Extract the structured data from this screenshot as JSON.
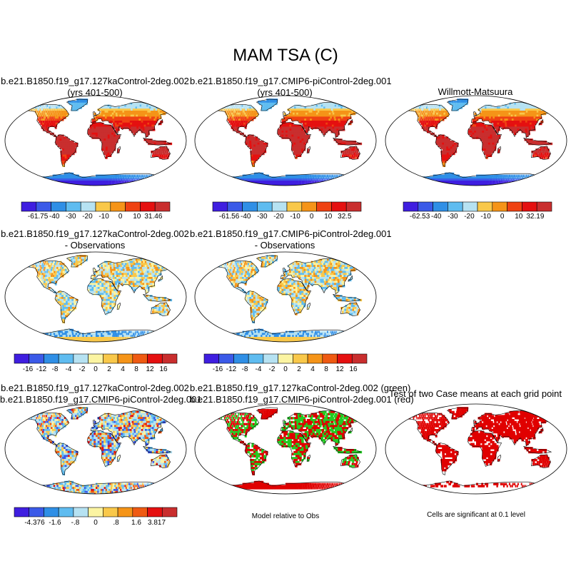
{
  "figure": {
    "title": "MAM TSA (C)",
    "panels": [
      {
        "line1": "b.e21.B1850.f19_g17.127kaControl-2deg.002",
        "line2": "(yrs 401-500)"
      },
      {
        "line1": "b.e21.B1850.f19_g17.CMIP6-piControl-2deg.001",
        "line2": "(yrs 401-500)"
      },
      {
        "line1": "Willmott-Matsuura",
        "line2": ""
      },
      {
        "line1": "b.e21.B1850.f19_g17.127kaControl-2deg.002",
        "line2": "- Observations"
      },
      {
        "line1": "b.e21.B1850.f19_g17.CMIP6-piControl-2deg.001",
        "line2": "- Observations"
      },
      {
        "line1": "b.e21.B1850.f19_g17.127kaControl-2deg.002",
        "line2": "b.e21.B1850.f19_g17.CMIP6-piControl-2deg.001"
      },
      {
        "line1": "b.e21.B1850.f19_g17.127kaControl-2deg.002 (green)",
        "line2": "b.e21.B1850.f19_g17.CMIP6-piControl-2deg.001 (red)"
      },
      {
        "line1": "Test of two Case means at each grid point",
        "line2": ""
      }
    ],
    "notes": {
      "model_relative": "Model relative to Obs",
      "significance": "Cells are significant at 0.1 level"
    }
  },
  "chart_data": [
    {
      "type": "heatmap",
      "panel": "case1",
      "field": "MAM TSA (C)",
      "colorbar": {
        "labels": [
          "-61.75",
          "-40",
          "-30",
          "-20",
          "-10",
          "0",
          "10",
          "31.46"
        ],
        "min": -61.75,
        "max": 31.46
      }
    },
    {
      "type": "heatmap",
      "panel": "case2",
      "field": "MAM TSA (C)",
      "colorbar": {
        "labels": [
          "-61.56",
          "-40",
          "-30",
          "-20",
          "-10",
          "0",
          "10",
          "32.5"
        ],
        "min": -61.56,
        "max": 32.5
      }
    },
    {
      "type": "heatmap",
      "panel": "obs",
      "field": "MAM TSA (C)",
      "colorbar": {
        "labels": [
          "-62.53",
          "-40",
          "-30",
          "-20",
          "-10",
          "0",
          "10",
          "32.19"
        ],
        "min": -62.53,
        "max": 32.19
      }
    },
    {
      "type": "heatmap",
      "panel": "case1-minus-obs",
      "colorbar": {
        "labels": [
          "-16",
          "-12",
          "-8",
          "-4",
          "-2",
          "0",
          "2",
          "4",
          "8",
          "12",
          "16"
        ]
      }
    },
    {
      "type": "heatmap",
      "panel": "case2-minus-obs",
      "colorbar": {
        "labels": [
          "-16",
          "-12",
          "-8",
          "-4",
          "-2",
          "0",
          "2",
          "4",
          "8",
          "12",
          "16"
        ]
      }
    },
    {
      "type": "heatmap",
      "panel": "case1-minus-case2",
      "colorbar": {
        "labels": [
          "-4.376",
          "-1.6",
          "-.8",
          "0",
          ".8",
          "1.6",
          "3.817"
        ],
        "min": -4.376,
        "max": 3.817
      }
    },
    {
      "type": "heatmap",
      "panel": "closer-to-obs",
      "legend": [
        "green",
        "red"
      ]
    },
    {
      "type": "heatmap",
      "panel": "significance",
      "level": 0.1
    }
  ],
  "palettes": {
    "temp": [
      "#3f1ee0",
      "#3b5ae8",
      "#2f8fe6",
      "#5fbcf0",
      "#b6e2f2",
      "#f9c84a",
      "#f59418",
      "#ef4212",
      "#e51010",
      "#c92e2e"
    ],
    "diff": [
      "#3f1ee0",
      "#3b5ae8",
      "#2f8fe6",
      "#5fbcf0",
      "#b6e2f2",
      "#fbf4a2",
      "#f9c84a",
      "#f59418",
      "#ef5a12",
      "#e51010",
      "#c92e2e"
    ],
    "small": [
      "#3f1ee0",
      "#3b5ae8",
      "#2f8fe6",
      "#5fbcf0",
      "#b6e2f2",
      "#fbf4a2",
      "#f9c84a",
      "#f59418",
      "#ef5a12",
      "#e51010",
      "#c92e2e"
    ]
  }
}
